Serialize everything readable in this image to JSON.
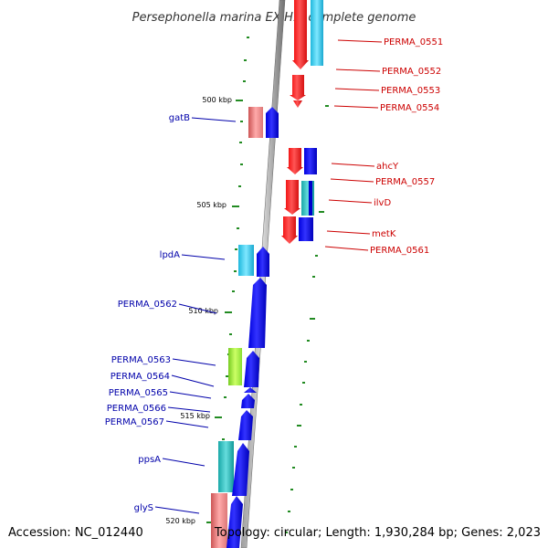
{
  "title": "Persephonella marina EX-H1, complete genome",
  "footer": {
    "accession": "Accession: NC_012440",
    "topology": "Topology: circular; Length: 1,930,284 bp; Genes: 2,023"
  },
  "scale_labels": [
    "500 kbp",
    "505 kbp",
    "510 kbp",
    "515 kbp",
    "520 kbp"
  ],
  "genes_right": [
    "PERMA_0551",
    "PERMA_0552",
    "PERMA_0553",
    "PERMA_0554",
    "ahcY",
    "PERMA_0557",
    "ilvD",
    "metK",
    "PERMA_0561"
  ],
  "genes_left": [
    "gatB",
    "lpdA",
    "PERMA_0562",
    "PERMA_0563",
    "PERMA_0564",
    "PERMA_0565",
    "PERMA_0566",
    "PERMA_0567",
    "ppsA",
    "glyS"
  ],
  "colors": {
    "right_label": "#cc0000",
    "left_label": "#0000aa",
    "reverse_cds": "#ff0000",
    "forward_cds": "#0000ff",
    "backbone": "#808080",
    "tick_green": "#228b22"
  }
}
